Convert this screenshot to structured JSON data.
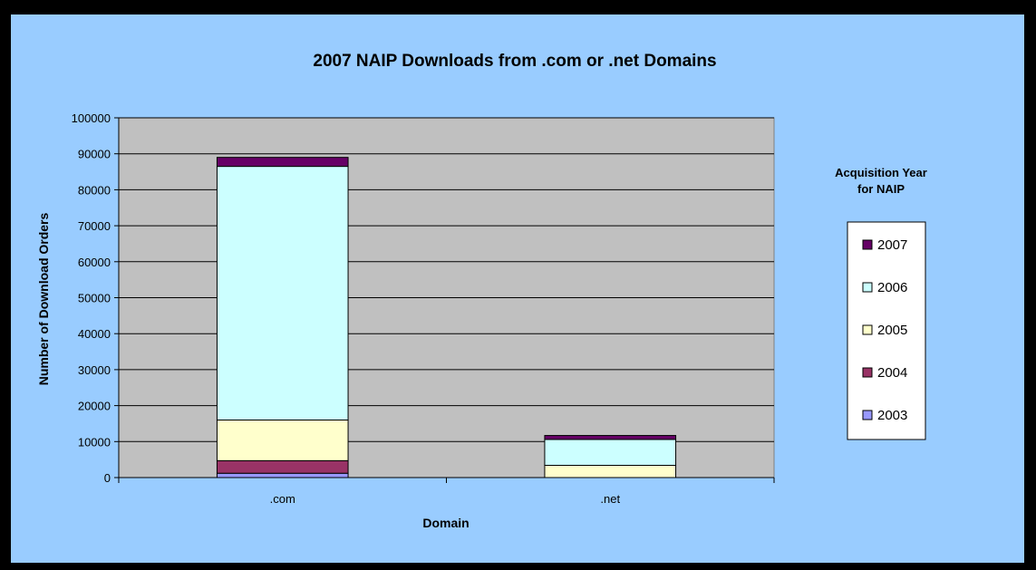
{
  "chart_data": {
    "type": "bar",
    "stacked": true,
    "title": "2007 NAIP Downloads from .com or .net Domains",
    "xlabel": "Domain",
    "ylabel": "Number of Download Orders",
    "ylim": [
      0,
      100000
    ],
    "y_ticks": [
      "0",
      "10000",
      "20000",
      "30000",
      "40000",
      "50000",
      "60000",
      "70000",
      "80000",
      "90000",
      "100000"
    ],
    "categories": [
      ".com",
      ".net"
    ],
    "grid": true,
    "legend_title": "Acquisition Year for NAIP",
    "legend_title_lines": [
      "Acquisition Year",
      "for NAIP"
    ],
    "legend_position": "right",
    "series": [
      {
        "name": "2003",
        "color": "#9999ff",
        "values": [
          1200,
          0
        ]
      },
      {
        "name": "2004",
        "color": "#993366",
        "values": [
          3500,
          0
        ]
      },
      {
        "name": "2005",
        "color": "#ffffcc",
        "values": [
          11300,
          3400
        ]
      },
      {
        "name": "2006",
        "color": "#ccffff",
        "values": [
          70500,
          7200
        ]
      },
      {
        "name": "2007",
        "color": "#660066",
        "values": [
          2500,
          1100
        ]
      }
    ]
  },
  "colors": {
    "frame": "#000000",
    "chart_background": "#99ccff",
    "plot_background": "#c0c0c0",
    "legend_background": "#ffffff"
  }
}
